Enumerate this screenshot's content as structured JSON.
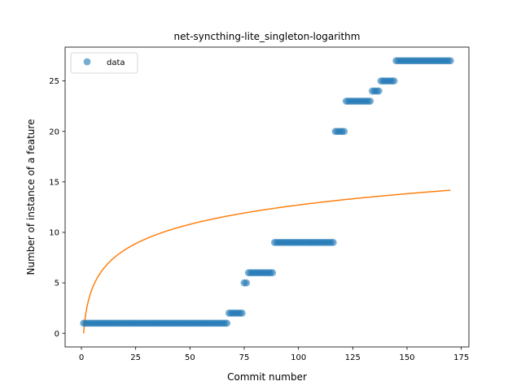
{
  "chart_data": {
    "type": "scatter",
    "title": "net-syncthing-lite_singleton-logarithm",
    "xlabel": "Commit number",
    "ylabel": "Number of instance of a feature",
    "xlim": [
      -7.5,
      178.5
    ],
    "ylim": [
      -1.35,
      28.35
    ],
    "xticks": [
      0,
      25,
      50,
      75,
      100,
      125,
      150,
      175
    ],
    "yticks": [
      0,
      5,
      10,
      15,
      20,
      25
    ],
    "legend": {
      "position": "upper-left"
    },
    "series": [
      {
        "name": "data",
        "kind": "scatter",
        "color": "#1f77b4",
        "alpha": 0.6,
        "segments": [
          {
            "x_from": 1,
            "x_to": 67,
            "y": 1
          },
          {
            "x_from": 68,
            "x_to": 74,
            "y": 2
          },
          {
            "x_from": 75,
            "x_to": 76,
            "y": 5
          },
          {
            "x_from": 77,
            "x_to": 88,
            "y": 6
          },
          {
            "x_from": 89,
            "x_to": 116,
            "y": 9
          },
          {
            "x_from": 117,
            "x_to": 121,
            "y": 20
          },
          {
            "x_from": 122,
            "x_to": 133,
            "y": 23
          },
          {
            "x_from": 134,
            "x_to": 137,
            "y": 24
          },
          {
            "x_from": 138,
            "x_to": 144,
            "y": 25
          },
          {
            "x_from": 145,
            "x_to": 170,
            "y": 27
          }
        ]
      },
      {
        "name": "",
        "kind": "line",
        "color": "#ff7f0e",
        "function": "a*ln(x)",
        "coefficient": 2.76,
        "x_range": [
          1,
          170
        ]
      }
    ]
  }
}
